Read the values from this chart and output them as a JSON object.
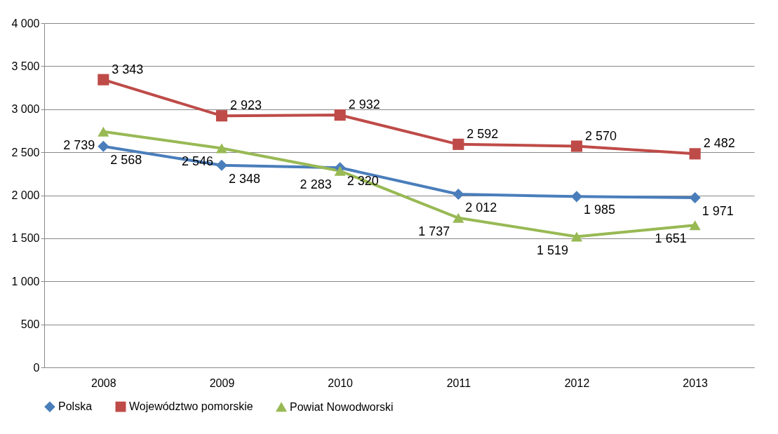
{
  "chart_data": {
    "type": "line",
    "categories": [
      "2008",
      "2009",
      "2010",
      "2011",
      "2012",
      "2013"
    ],
    "series": [
      {
        "name": "Polska",
        "color": "#4a7ebb",
        "marker": "diamond",
        "values": [
          2568,
          2348,
          2320,
          2012,
          1985,
          1971
        ],
        "value_labels": [
          "2 568",
          "2 348",
          "2 320",
          "2 012",
          "1 985",
          "1 971"
        ]
      },
      {
        "name": "Województwo pomorskie",
        "color": "#be4b48",
        "marker": "square",
        "values": [
          3343,
          2923,
          2932,
          2592,
          2570,
          2482
        ],
        "value_labels": [
          "3 343",
          "2 923",
          "2 932",
          "2 592",
          "2 570",
          "2 482"
        ]
      },
      {
        "name": "Powiat Nowodworski",
        "color": "#98b954",
        "marker": "triangle",
        "values": [
          2739,
          2546,
          2283,
          1737,
          1519,
          1651
        ],
        "value_labels": [
          "2 739",
          "2 546",
          "2 283",
          "1 737",
          "1 519",
          "1 651"
        ]
      }
    ],
    "ylim": [
      0,
      4000
    ],
    "yticks": [
      0,
      500,
      {
        "value": 1000,
        "label": "1 000"
      },
      {
        "value": 1500,
        "label": "1 500"
      },
      {
        "value": 2000,
        "label": "2 000"
      },
      {
        "value": 2500,
        "label": "2 500"
      },
      {
        "value": 3000,
        "label": "3 000"
      },
      {
        "value": 3500,
        "label": "3 500"
      },
      {
        "value": 4000,
        "label": "4 000"
      }
    ],
    "grid": "y",
    "legend": "bottom",
    "line_style": "solid"
  }
}
